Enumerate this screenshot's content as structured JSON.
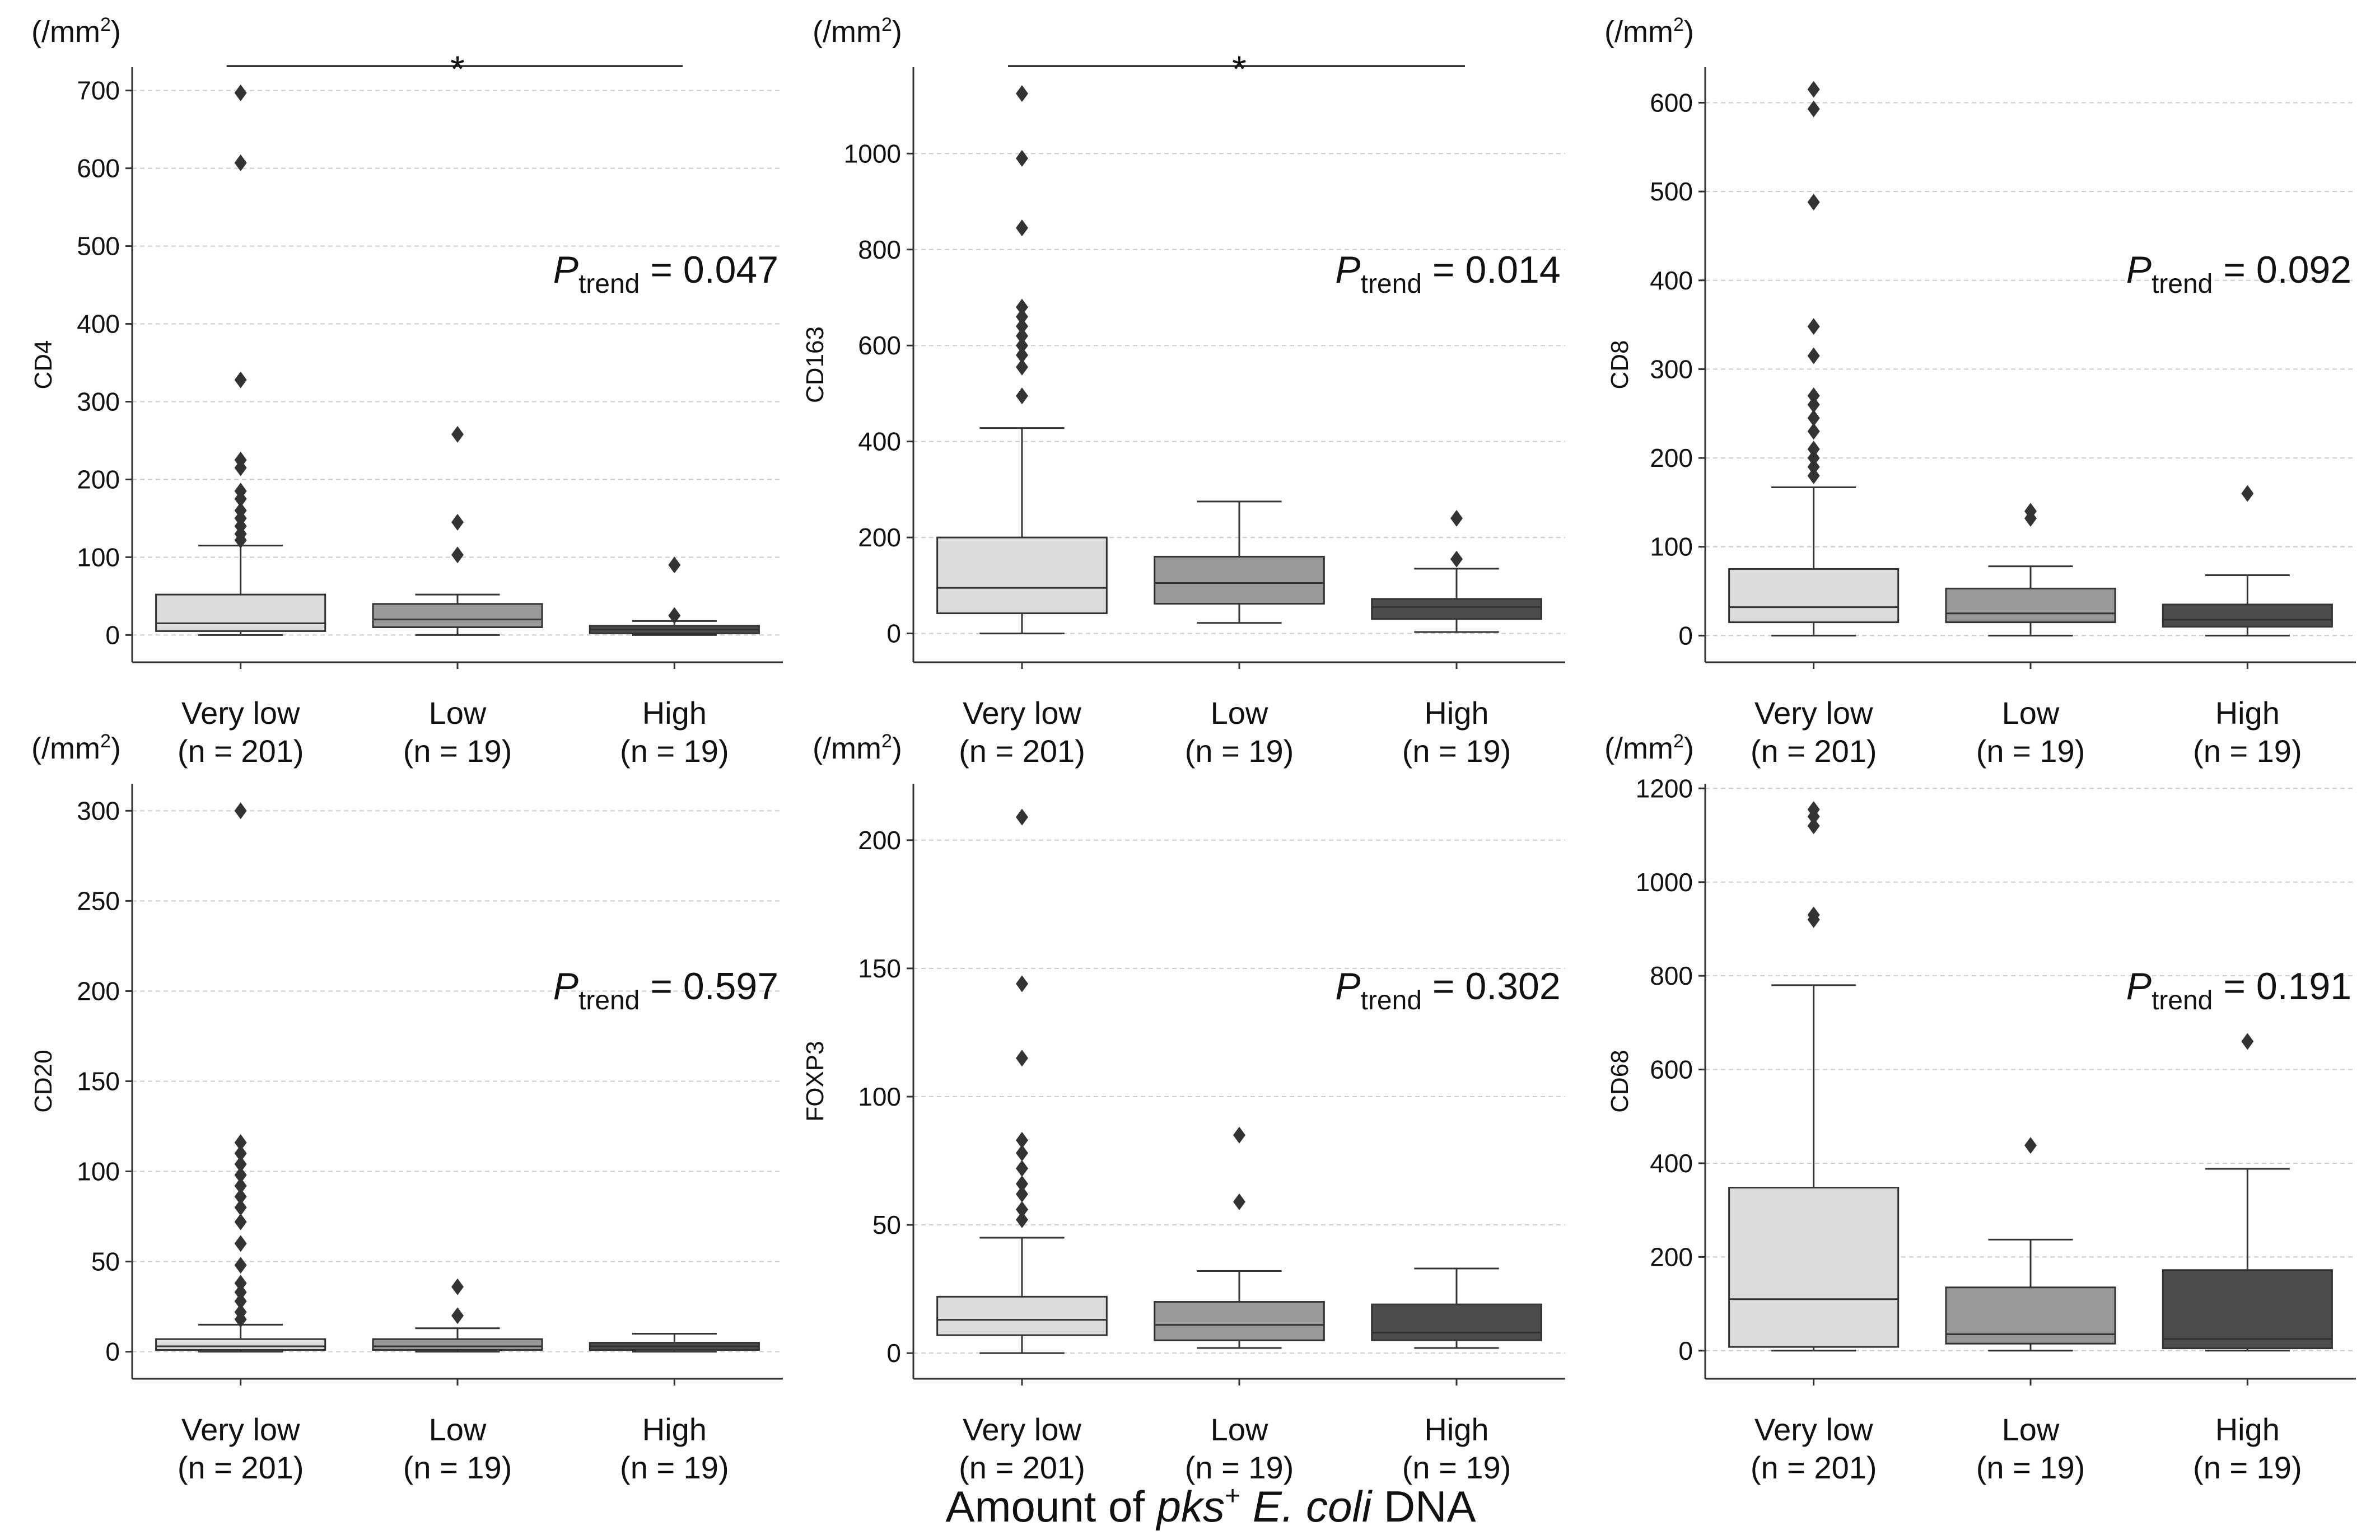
{
  "figure": {
    "xlabel_prefix": "Amount of ",
    "xlabel_italic_1": "pks",
    "xlabel_sup": "+",
    "xlabel_italic_2": " E. coli",
    "xlabel_suffix": " DNA",
    "unit_prefix": "(/mm",
    "unit_sup": "2",
    "unit_suffix": ")",
    "p_symbol": "P",
    "p_subscript": "trend"
  },
  "colors": {
    "very_low": "#dcdcdc",
    "low": "#999999",
    "high": "#4c4c4c",
    "line": "#333333",
    "grid": "#cccccc"
  },
  "chart_data": [
    {
      "type": "box",
      "ylabel": "CD4",
      "ylim": [
        -35,
        730
      ],
      "yticks": [
        0,
        100,
        200,
        300,
        400,
        500,
        600,
        700
      ],
      "p_value": "= 0.047",
      "significance": "*",
      "categories": [
        "Very low",
        "Low",
        "High"
      ],
      "counts": [
        "(n = 201)",
        "(n = 19)",
        "(n = 19)"
      ],
      "series": [
        {
          "name": "Very low",
          "min": 0,
          "q1": 5,
          "median": 15,
          "q3": 52,
          "max": 115,
          "outliers": [
            122,
            130,
            140,
            150,
            160,
            175,
            185,
            215,
            225,
            328,
            607,
            697
          ]
        },
        {
          "name": "Low",
          "min": 0,
          "q1": 10,
          "median": 20,
          "q3": 40,
          "max": 52,
          "outliers": [
            103,
            145,
            258
          ]
        },
        {
          "name": "High",
          "min": 0,
          "q1": 2,
          "median": 7,
          "q3": 12,
          "max": 18,
          "outliers": [
            25,
            90
          ]
        }
      ]
    },
    {
      "type": "box",
      "ylabel": "CD163",
      "ylim": [
        -60,
        1180
      ],
      "yticks": [
        0,
        200,
        400,
        600,
        800,
        1000
      ],
      "p_value": "= 0.014",
      "significance": "*",
      "categories": [
        "Very low",
        "Low",
        "High"
      ],
      "counts": [
        "(n = 201)",
        "(n = 19)",
        "(n = 19)"
      ],
      "series": [
        {
          "name": "Very low",
          "min": 0,
          "q1": 42,
          "median": 95,
          "q3": 200,
          "max": 428,
          "outliers": [
            495,
            555,
            580,
            600,
            620,
            640,
            660,
            680,
            845,
            990,
            1125
          ]
        },
        {
          "name": "Low",
          "min": 22,
          "q1": 62,
          "median": 105,
          "q3": 160,
          "max": 275,
          "outliers": []
        },
        {
          "name": "High",
          "min": 3,
          "q1": 30,
          "median": 55,
          "q3": 72,
          "max": 135,
          "outliers": [
            155,
            240
          ]
        }
      ]
    },
    {
      "type": "box",
      "ylabel": "CD8",
      "ylim": [
        -30,
        640
      ],
      "yticks": [
        0,
        100,
        200,
        300,
        400,
        500,
        600
      ],
      "p_value": "= 0.092",
      "significance": "",
      "categories": [
        "Very low",
        "Low",
        "High"
      ],
      "counts": [
        "(n = 201)",
        "(n = 19)",
        "(n = 19)"
      ],
      "series": [
        {
          "name": "Very low",
          "min": 0,
          "q1": 15,
          "median": 32,
          "q3": 75,
          "max": 167,
          "outliers": [
            180,
            190,
            200,
            210,
            230,
            245,
            260,
            270,
            315,
            348,
            488,
            593,
            615
          ]
        },
        {
          "name": "Low",
          "min": 0,
          "q1": 15,
          "median": 25,
          "q3": 53,
          "max": 78,
          "outliers": [
            132,
            140
          ]
        },
        {
          "name": "High",
          "min": 0,
          "q1": 10,
          "median": 18,
          "q3": 35,
          "max": 68,
          "outliers": [
            160
          ]
        }
      ]
    },
    {
      "type": "box",
      "ylabel": "CD20",
      "ylim": [
        -15,
        315
      ],
      "yticks": [
        0,
        50,
        100,
        150,
        200,
        250,
        300
      ],
      "p_value": "= 0.597",
      "significance": "",
      "categories": [
        "Very low",
        "Low",
        "High"
      ],
      "counts": [
        "(n = 201)",
        "(n = 19)",
        "(n = 19)"
      ],
      "series": [
        {
          "name": "Very low",
          "min": 0,
          "q1": 1,
          "median": 3,
          "q3": 7,
          "max": 15,
          "outliers": [
            18,
            22,
            28,
            33,
            38,
            48,
            60,
            72,
            80,
            86,
            92,
            98,
            104,
            110,
            116,
            300
          ]
        },
        {
          "name": "Low",
          "min": 0,
          "q1": 1,
          "median": 3,
          "q3": 7,
          "max": 13,
          "outliers": [
            20,
            36
          ]
        },
        {
          "name": "High",
          "min": 0,
          "q1": 1,
          "median": 3,
          "q3": 5,
          "max": 10,
          "outliers": []
        }
      ]
    },
    {
      "type": "box",
      "ylabel": "FOXP3",
      "ylim": [
        -10,
        222
      ],
      "yticks": [
        0,
        50,
        100,
        150,
        200
      ],
      "p_value": "= 0.302",
      "significance": "",
      "categories": [
        "Very low",
        "Low",
        "High"
      ],
      "counts": [
        "(n = 201)",
        "(n = 19)",
        "(n = 19)"
      ],
      "series": [
        {
          "name": "Very low",
          "min": 0,
          "q1": 7,
          "median": 13,
          "q3": 22,
          "max": 45,
          "outliers": [
            52,
            56,
            62,
            66,
            72,
            78,
            83,
            115,
            144,
            209
          ]
        },
        {
          "name": "Low",
          "min": 2,
          "q1": 5,
          "median": 11,
          "q3": 20,
          "max": 32,
          "outliers": [
            59,
            85
          ]
        },
        {
          "name": "High",
          "min": 2,
          "q1": 5,
          "median": 8,
          "q3": 19,
          "max": 33,
          "outliers": []
        }
      ]
    },
    {
      "type": "box",
      "ylabel": "CD68",
      "ylim": [
        -60,
        1210
      ],
      "yticks": [
        0,
        200,
        400,
        600,
        800,
        1000,
        1200
      ],
      "p_value": "= 0.191",
      "significance": "",
      "categories": [
        "Very low",
        "Low",
        "High"
      ],
      "counts": [
        "(n = 201)",
        "(n = 19)",
        "(n = 19)"
      ],
      "series": [
        {
          "name": "Very low",
          "min": 0,
          "q1": 8,
          "median": 110,
          "q3": 348,
          "max": 780,
          "outliers": [
            920,
            930,
            1120,
            1140,
            1155
          ]
        },
        {
          "name": "Low",
          "min": 0,
          "q1": 15,
          "median": 35,
          "q3": 135,
          "max": 237,
          "outliers": [
            438
          ]
        },
        {
          "name": "High",
          "min": 0,
          "q1": 5,
          "median": 25,
          "q3": 172,
          "max": 388,
          "outliers": [
            660
          ]
        }
      ]
    }
  ]
}
